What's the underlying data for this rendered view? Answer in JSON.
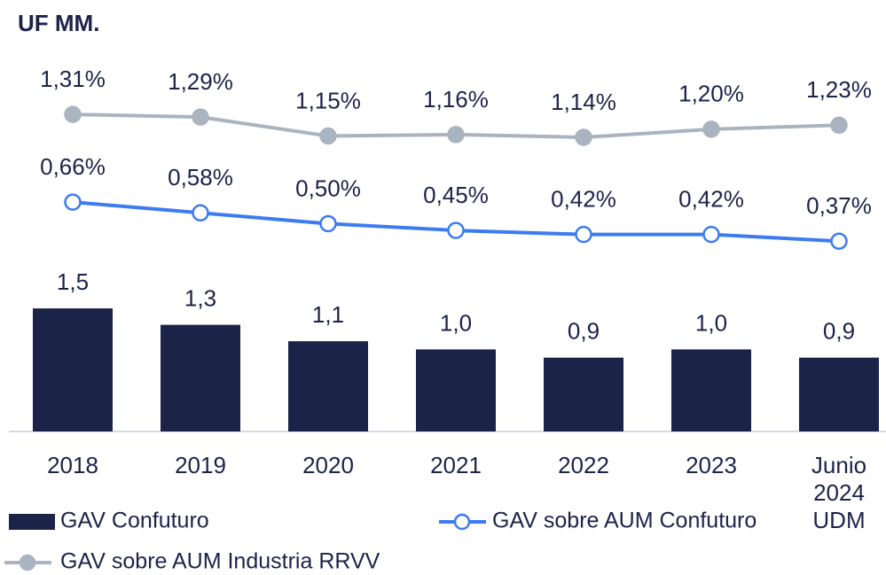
{
  "chart_data": {
    "type": "bar",
    "title": "UF MM.",
    "categories": [
      "2018",
      "2019",
      "2020",
      "2021",
      "2022",
      "2023",
      "Junio 2024 UDM"
    ],
    "ylim": [
      0,
      5
    ],
    "y2lim": [
      -1.04,
      2.0
    ],
    "series": [
      {
        "name": "GAV Confuturo",
        "type": "bar",
        "color": "#1c2349",
        "values": [
          1.5,
          1.3,
          1.1,
          1.0,
          0.9,
          1.0,
          0.9
        ],
        "value_labels": [
          "1,5",
          "1,3",
          "1,1",
          "1,0",
          "0,9",
          "1,0",
          "0,9"
        ]
      },
      {
        "name": "GAV sobre AUM Confuturo",
        "type": "line",
        "axis": "y2",
        "color": "#3d7bf0",
        "marker": "open",
        "values": [
          0.66,
          0.58,
          0.5,
          0.45,
          0.42,
          0.42,
          0.37
        ],
        "value_labels": [
          "0,66%",
          "0,58%",
          "0,50%",
          "0,45%",
          "0,42%",
          "0,42%",
          "0,37%"
        ]
      },
      {
        "name": "GAV sobre AUM Industria RRVV",
        "type": "line",
        "axis": "y2",
        "color": "#a9b4c0",
        "marker": "filled",
        "values": [
          1.31,
          1.29,
          1.15,
          1.16,
          1.14,
          1.2,
          1.23
        ],
        "value_labels": [
          "1,31%",
          "1,29%",
          "1,15%",
          "1,16%",
          "1,14%",
          "1,20%",
          "1,23%"
        ]
      }
    ]
  }
}
